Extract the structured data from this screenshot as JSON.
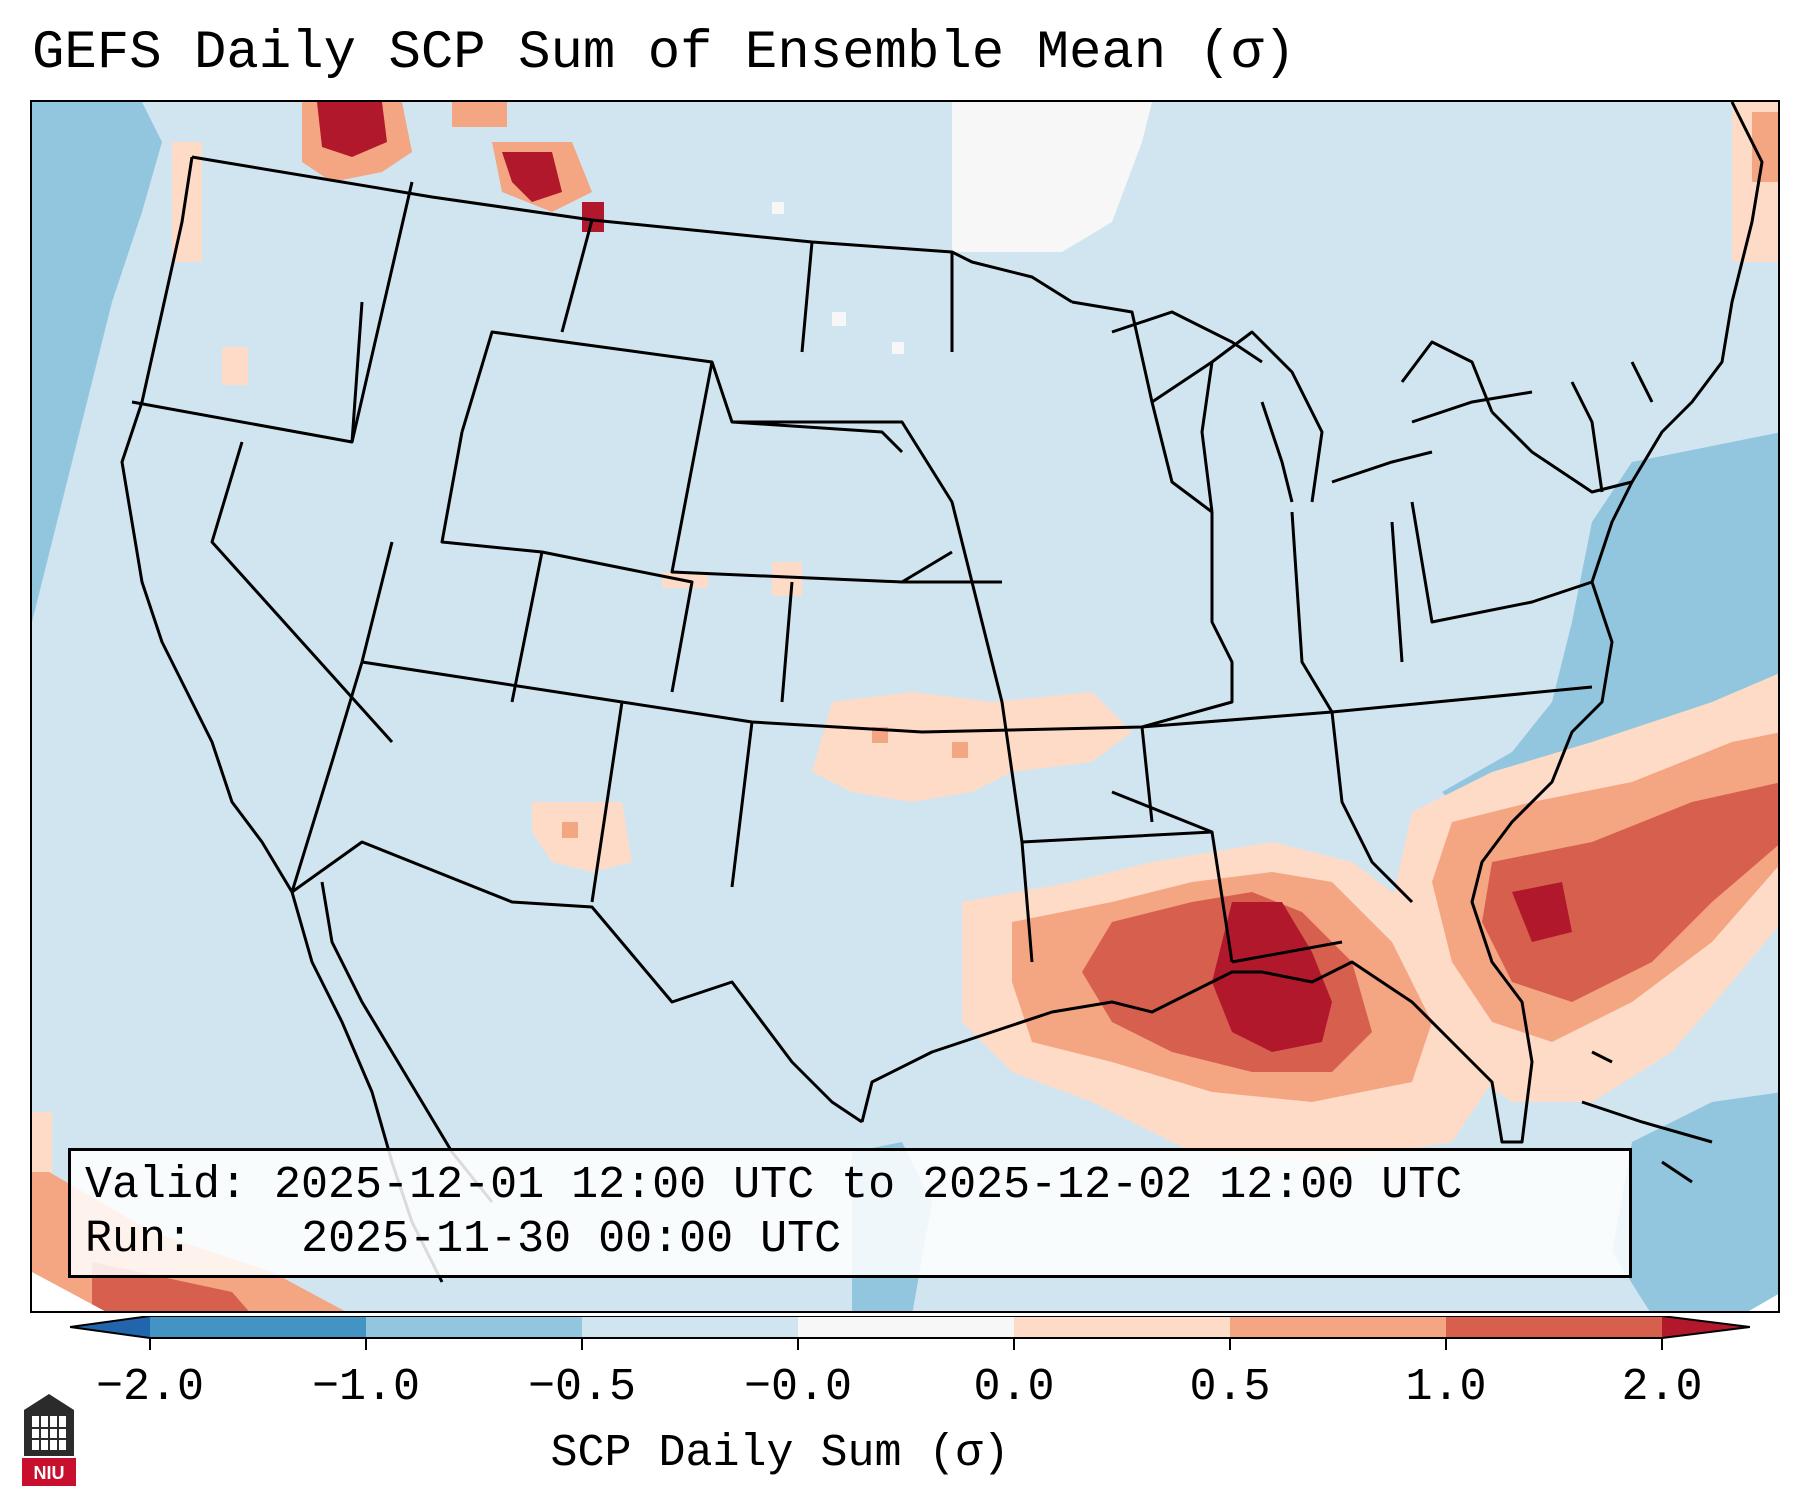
{
  "title": "GEFS Daily SCP Sum of Ensemble Mean (σ)",
  "info": {
    "valid_label": "Valid:",
    "valid_value": "2025-12-01 12:00 UTC to 2025-12-02 12:00 UTC",
    "run_label": "Run:",
    "run_value": "2025-11-30 00:00 UTC"
  },
  "colorbar": {
    "label": "SCP Daily Sum (σ)",
    "ticks": [
      "−2.0",
      "−1.0",
      "−0.5",
      "−0.0",
      "0.0",
      "0.5",
      "1.0",
      "2.0"
    ],
    "colors": [
      "#4393c3",
      "#92c5de",
      "#d1e5f0",
      "#f7f7f7",
      "#fddbc7",
      "#f4a582",
      "#d6604d",
      "#b2182b"
    ],
    "extend_low_color": "#2166ac",
    "extend_high_color": "#b2182b"
  },
  "map": {
    "region": "CONUS",
    "background_color": "#d1e5f0",
    "features": [
      {
        "name": "gulf-of-mexico-high-scp",
        "level": 2.0
      },
      {
        "name": "southeast-coast-atlantic-high-scp",
        "level": 2.0
      },
      {
        "name": "southern-plains-weak-scp",
        "level": 0.5
      },
      {
        "name": "pacific-northwest-scp",
        "level": 2.0
      },
      {
        "name": "atlantic-negative-region",
        "level": -1.0
      },
      {
        "name": "pacific-negative-region",
        "level": -1.0
      },
      {
        "name": "northern-plains-near-zero",
        "level": 0.0
      }
    ]
  },
  "logo": {
    "text": "NIU"
  }
}
